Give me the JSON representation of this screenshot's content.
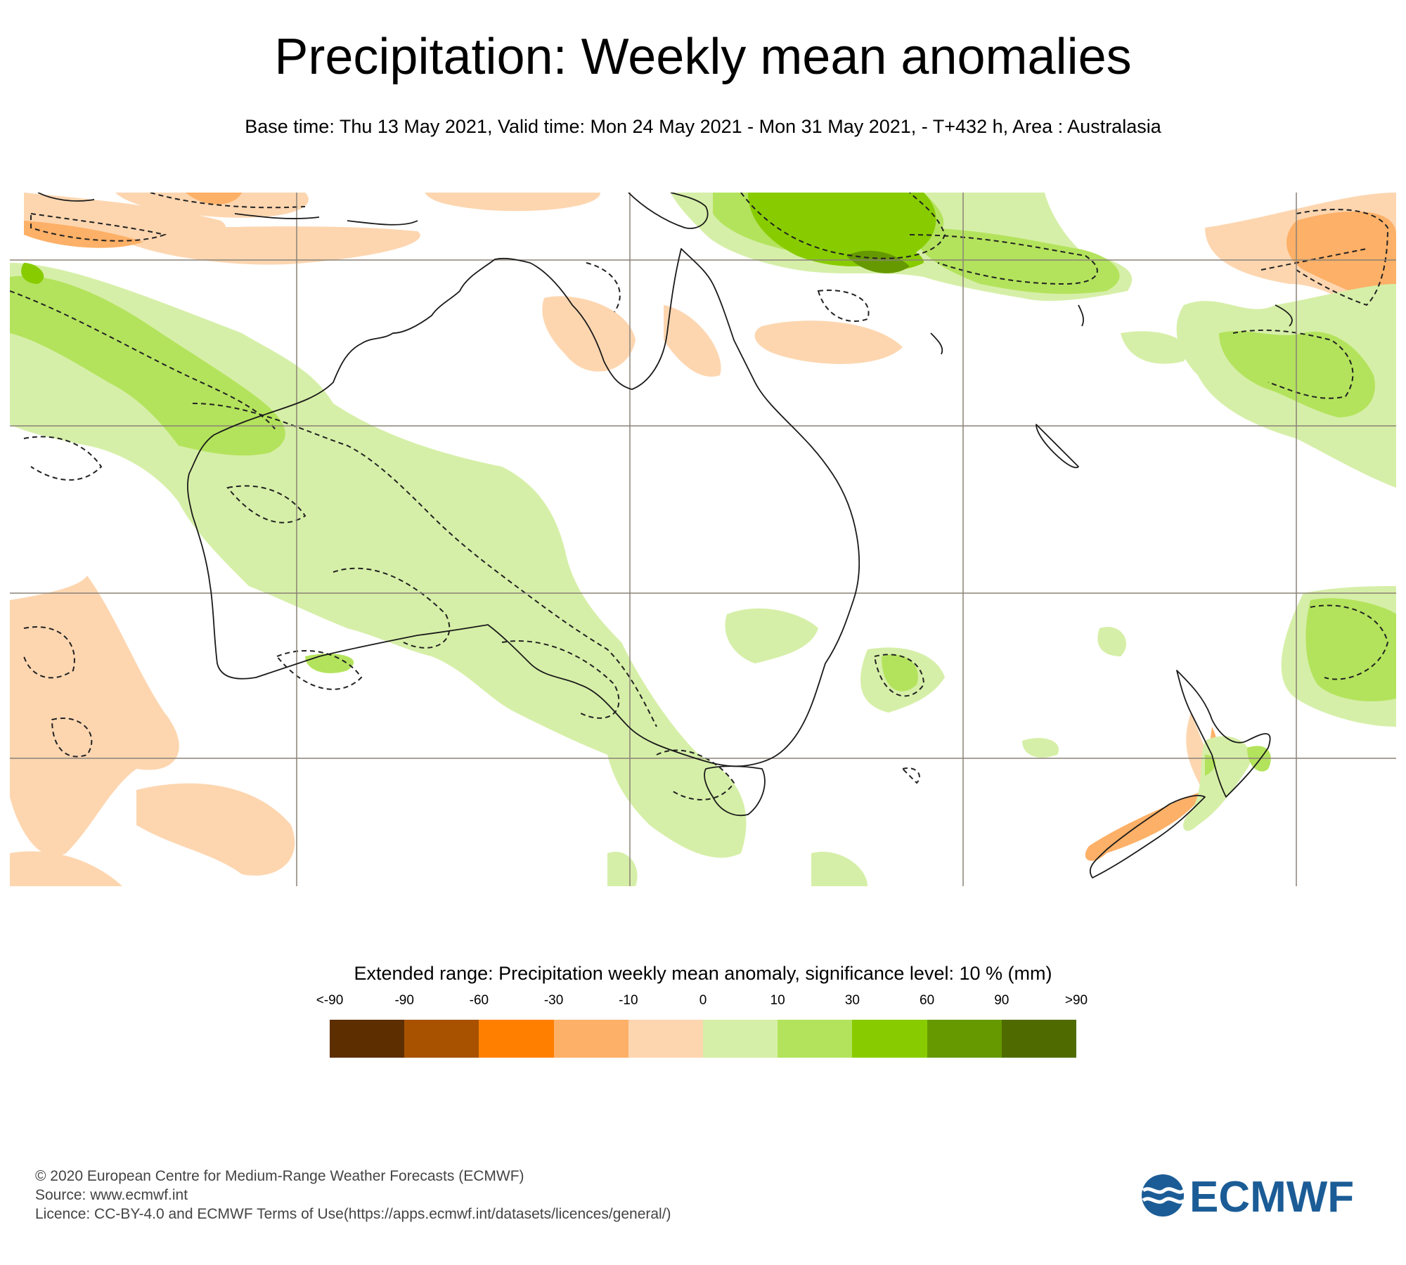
{
  "title": "Precipitation: Weekly mean anomalies",
  "subtitle": "Base time: Thu 13 May 2021, Valid time: Mon 24 May 2021 - Mon 31 May 2021, - T+432 h, Area : Australasia",
  "legend": {
    "title": "Extended range: Precipitation weekly mean anomaly, significance level: 10 % (mm)",
    "ticks": [
      "<-90",
      "-90",
      "-60",
      "-30",
      "-10",
      "0",
      "10",
      "30",
      "60",
      "90",
      ">90"
    ],
    "colors": [
      "#5c2e00",
      "#a85200",
      "#ff8000",
      "#fdb067",
      "#fdd6b0",
      "#d6efa8",
      "#b3e35c",
      "#88cc00",
      "#669900",
      "#4f6b00"
    ]
  },
  "footer": {
    "line1": "© 2020 European Centre for Medium-Range Weather Forecasts (ECMWF)",
    "line2": "Source: www.ecmwf.int",
    "line3": "Licence: CC-BY-4.0 and ECMWF Terms of Use(https://apps.ecmwf.int/datasets/licences/general/)"
  },
  "logo": {
    "text": "ECMWF",
    "color": "#1b5c96"
  }
}
